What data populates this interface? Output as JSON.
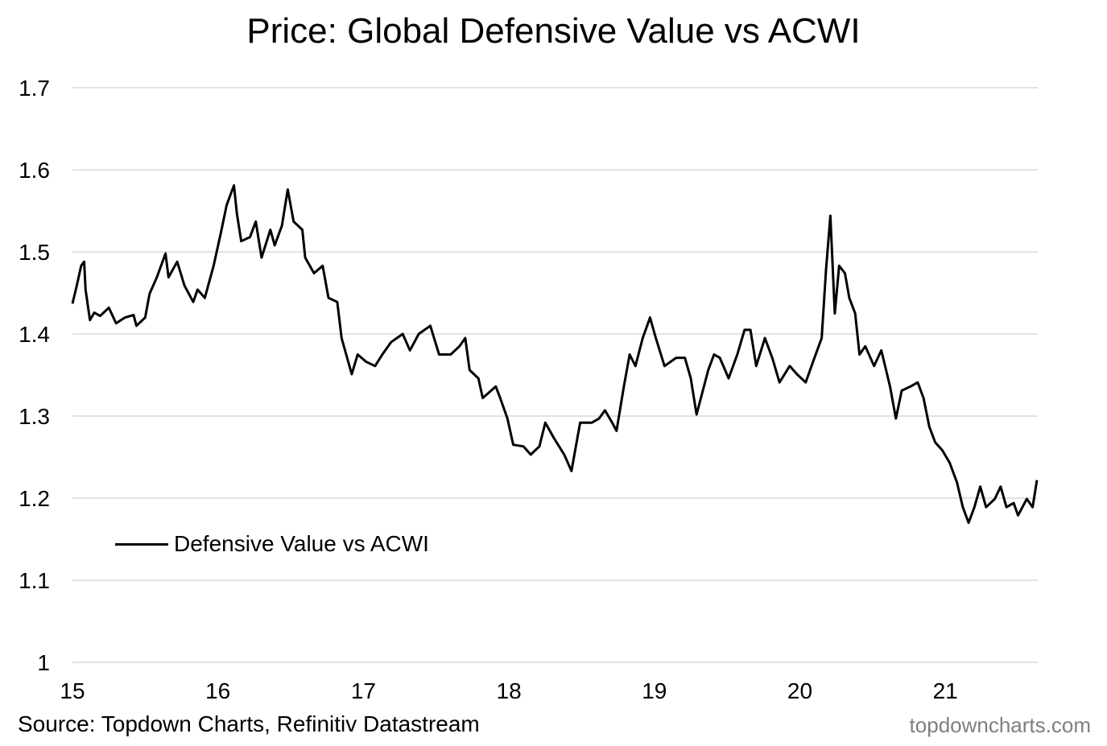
{
  "chart_data": {
    "type": "line",
    "title": "Price: Global Defensive Value vs ACWI",
    "xlabel": "",
    "ylabel": "",
    "xlim": [
      15,
      21.63
    ],
    "ylim": [
      1.0,
      1.7
    ],
    "x_ticks": [
      "15",
      "16",
      "17",
      "18",
      "19",
      "20",
      "21"
    ],
    "y_ticks": [
      "1",
      "1.1",
      "1.2",
      "1.3",
      "1.4",
      "1.5",
      "1.6",
      "1.7"
    ],
    "grid": true,
    "legend_position": "bottom-left",
    "series": [
      {
        "name": "Defensive Value vs ACWI",
        "color": "#000000",
        "points": [
          [
            15.0,
            1.437
          ],
          [
            15.03,
            1.459
          ],
          [
            15.06,
            1.483
          ],
          [
            15.08,
            1.488
          ],
          [
            15.09,
            1.454
          ],
          [
            15.12,
            1.417
          ],
          [
            15.15,
            1.426
          ],
          [
            15.19,
            1.422
          ],
          [
            15.25,
            1.432
          ],
          [
            15.3,
            1.413
          ],
          [
            15.36,
            1.42
          ],
          [
            15.42,
            1.423
          ],
          [
            15.44,
            1.41
          ],
          [
            15.5,
            1.42
          ],
          [
            15.53,
            1.449
          ],
          [
            15.58,
            1.469
          ],
          [
            15.64,
            1.498
          ],
          [
            15.66,
            1.469
          ],
          [
            15.72,
            1.488
          ],
          [
            15.77,
            1.459
          ],
          [
            15.83,
            1.439
          ],
          [
            15.86,
            1.454
          ],
          [
            15.91,
            1.444
          ],
          [
            15.97,
            1.483
          ],
          [
            16.02,
            1.523
          ],
          [
            16.06,
            1.557
          ],
          [
            16.11,
            1.581
          ],
          [
            16.13,
            1.547
          ],
          [
            16.16,
            1.513
          ],
          [
            16.22,
            1.518
          ],
          [
            16.26,
            1.537
          ],
          [
            16.3,
            1.493
          ],
          [
            16.36,
            1.527
          ],
          [
            16.39,
            1.508
          ],
          [
            16.44,
            1.532
          ],
          [
            16.48,
            1.576
          ],
          [
            16.52,
            1.537
          ],
          [
            16.58,
            1.527
          ],
          [
            16.6,
            1.493
          ],
          [
            16.66,
            1.474
          ],
          [
            16.72,
            1.483
          ],
          [
            16.76,
            1.444
          ],
          [
            16.82,
            1.439
          ],
          [
            16.85,
            1.395
          ],
          [
            16.92,
            1.351
          ],
          [
            16.96,
            1.375
          ],
          [
            17.02,
            1.366
          ],
          [
            17.08,
            1.361
          ],
          [
            17.13,
            1.375
          ],
          [
            17.19,
            1.39
          ],
          [
            17.27,
            1.4
          ],
          [
            17.32,
            1.38
          ],
          [
            17.38,
            1.4
          ],
          [
            17.46,
            1.41
          ],
          [
            17.52,
            1.375
          ],
          [
            17.6,
            1.375
          ],
          [
            17.66,
            1.385
          ],
          [
            17.7,
            1.395
          ],
          [
            17.73,
            1.356
          ],
          [
            17.79,
            1.346
          ],
          [
            17.82,
            1.322
          ],
          [
            17.91,
            1.336
          ],
          [
            17.94,
            1.322
          ],
          [
            17.99,
            1.297
          ],
          [
            18.03,
            1.265
          ],
          [
            18.1,
            1.263
          ],
          [
            18.15,
            1.253
          ],
          [
            18.21,
            1.263
          ],
          [
            18.25,
            1.292
          ],
          [
            18.31,
            1.273
          ],
          [
            18.38,
            1.253
          ],
          [
            18.43,
            1.233
          ],
          [
            18.49,
            1.292
          ],
          [
            18.57,
            1.292
          ],
          [
            18.62,
            1.297
          ],
          [
            18.66,
            1.307
          ],
          [
            18.71,
            1.292
          ],
          [
            18.74,
            1.282
          ],
          [
            18.79,
            1.336
          ],
          [
            18.83,
            1.375
          ],
          [
            18.87,
            1.361
          ],
          [
            18.92,
            1.395
          ],
          [
            18.97,
            1.42
          ],
          [
            19.01,
            1.395
          ],
          [
            19.07,
            1.361
          ],
          [
            19.15,
            1.371
          ],
          [
            19.21,
            1.371
          ],
          [
            19.25,
            1.346
          ],
          [
            19.29,
            1.302
          ],
          [
            19.37,
            1.356
          ],
          [
            19.41,
            1.375
          ],
          [
            19.45,
            1.371
          ],
          [
            19.51,
            1.346
          ],
          [
            19.57,
            1.375
          ],
          [
            19.62,
            1.405
          ],
          [
            19.66,
            1.405
          ],
          [
            19.7,
            1.361
          ],
          [
            19.76,
            1.395
          ],
          [
            19.81,
            1.371
          ],
          [
            19.86,
            1.341
          ],
          [
            19.93,
            1.361
          ],
          [
            19.98,
            1.351
          ],
          [
            20.04,
            1.341
          ],
          [
            20.09,
            1.366
          ],
          [
            20.15,
            1.395
          ],
          [
            20.18,
            1.478
          ],
          [
            20.21,
            1.544
          ],
          [
            20.24,
            1.425
          ],
          [
            20.27,
            1.483
          ],
          [
            20.31,
            1.474
          ],
          [
            20.34,
            1.444
          ],
          [
            20.38,
            1.425
          ],
          [
            20.41,
            1.375
          ],
          [
            20.45,
            1.385
          ],
          [
            20.51,
            1.361
          ],
          [
            20.56,
            1.38
          ],
          [
            20.62,
            1.336
          ],
          [
            20.66,
            1.297
          ],
          [
            20.7,
            1.331
          ],
          [
            20.76,
            1.336
          ],
          [
            20.81,
            1.341
          ],
          [
            20.85,
            1.322
          ],
          [
            20.89,
            1.287
          ],
          [
            20.93,
            1.268
          ],
          [
            20.98,
            1.258
          ],
          [
            21.03,
            1.243
          ],
          [
            21.08,
            1.219
          ],
          [
            21.12,
            1.189
          ],
          [
            21.16,
            1.17
          ],
          [
            21.2,
            1.189
          ],
          [
            21.24,
            1.214
          ],
          [
            21.28,
            1.189
          ],
          [
            21.34,
            1.199
          ],
          [
            21.38,
            1.214
          ],
          [
            21.42,
            1.189
          ],
          [
            21.47,
            1.194
          ],
          [
            21.5,
            1.179
          ],
          [
            21.56,
            1.199
          ],
          [
            21.6,
            1.189
          ],
          [
            21.63,
            1.222
          ]
        ]
      }
    ]
  },
  "footer": {
    "source": "Source: Topdown Charts, Refinitiv Datastream",
    "watermark": "topdowncharts.com"
  }
}
